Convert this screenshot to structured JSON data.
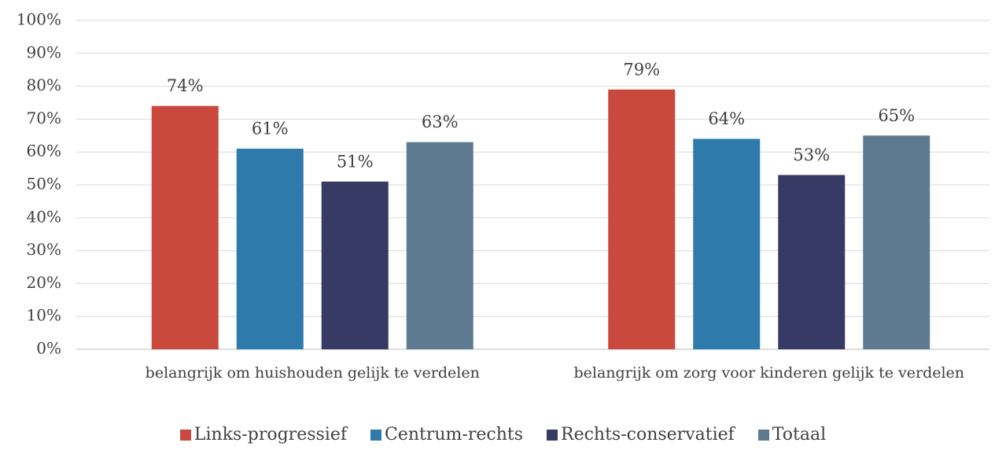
{
  "chart_data": {
    "type": "bar",
    "categories": [
      "belangrijk om huishouden gelijk te verdelen",
      "belangrijk om zorg voor kinderen gelijk te verdelen"
    ],
    "series": [
      {
        "name": "Links-progressief",
        "color": "#c9493f",
        "values": [
          74,
          79
        ],
        "value_labels": [
          "74%",
          "79%"
        ]
      },
      {
        "name": "Centrum-rechts",
        "color": "#2e7aab",
        "values": [
          61,
          64
        ],
        "value_labels": [
          "61%",
          "64%"
        ]
      },
      {
        "name": "Rechts-conservatief",
        "color": "#363a64",
        "values": [
          51,
          53
        ],
        "value_labels": [
          "51%",
          "53%"
        ]
      },
      {
        "name": "Totaal",
        "color": "#5e7a90",
        "values": [
          63,
          65
        ],
        "value_labels": [
          "63%",
          "65%"
        ]
      }
    ],
    "ylim": [
      0,
      100
    ],
    "yticks": [
      {
        "value": 0,
        "label": "0%"
      },
      {
        "value": 10,
        "label": "10%"
      },
      {
        "value": 20,
        "label": "20%"
      },
      {
        "value": 30,
        "label": "30%"
      },
      {
        "value": 40,
        "label": "40%"
      },
      {
        "value": 50,
        "label": "50%"
      },
      {
        "value": 60,
        "label": "60%"
      },
      {
        "value": 70,
        "label": "70%"
      },
      {
        "value": 80,
        "label": "80%"
      },
      {
        "value": 90,
        "label": "90%"
      },
      {
        "value": 100,
        "label": "100%"
      }
    ],
    "grid": true,
    "legend": "bottom"
  }
}
